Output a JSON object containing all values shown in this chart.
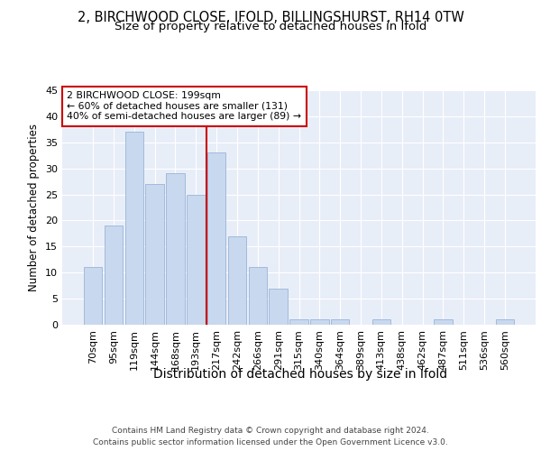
{
  "title_line1": "2, BIRCHWOOD CLOSE, IFOLD, BILLINGSHURST, RH14 0TW",
  "title_line2": "Size of property relative to detached houses in Ifold",
  "xlabel": "Distribution of detached houses by size in Ifold",
  "ylabel": "Number of detached properties",
  "categories": [
    "70sqm",
    "95sqm",
    "119sqm",
    "144sqm",
    "168sqm",
    "193sqm",
    "217sqm",
    "242sqm",
    "266sqm",
    "291sqm",
    "315sqm",
    "340sqm",
    "364sqm",
    "389sqm",
    "413sqm",
    "438sqm",
    "462sqm",
    "487sqm",
    "511sqm",
    "536sqm",
    "560sqm"
  ],
  "values": [
    11,
    19,
    37,
    27,
    29,
    25,
    33,
    17,
    11,
    7,
    1,
    1,
    1,
    0,
    1,
    0,
    0,
    1,
    0,
    0,
    1
  ],
  "bar_color": "#c8d8ee",
  "bar_edge_color": "#9ab4d8",
  "vline_color": "#cc0000",
  "annotation_text": "2 BIRCHWOOD CLOSE: 199sqm\n← 60% of detached houses are smaller (131)\n40% of semi-detached houses are larger (89) →",
  "annotation_box_color": "#cc0000",
  "ylim": [
    0,
    45
  ],
  "yticks": [
    0,
    5,
    10,
    15,
    20,
    25,
    30,
    35,
    40,
    45
  ],
  "footer_text": "Contains HM Land Registry data © Crown copyright and database right 2024.\nContains public sector information licensed under the Open Government Licence v3.0.",
  "bg_color": "#ffffff",
  "plot_bg_color": "#e8eef8",
  "grid_color": "#ffffff",
  "title_fontsize": 10.5,
  "subtitle_fontsize": 9.5,
  "tick_fontsize": 8,
  "ylabel_fontsize": 8.5,
  "xlabel_fontsize": 10,
  "footer_fontsize": 6.5
}
